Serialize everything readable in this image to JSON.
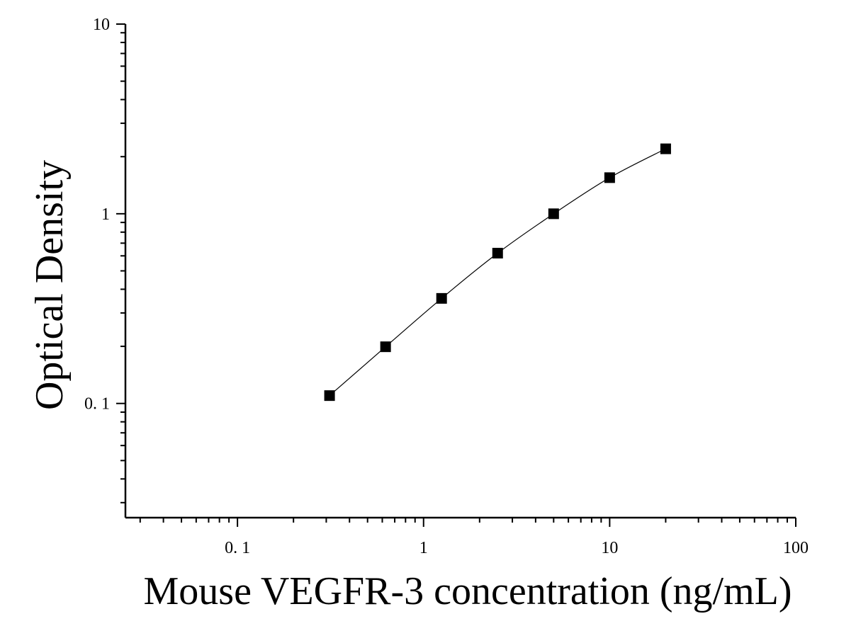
{
  "chart_data": {
    "type": "scatter",
    "title": "",
    "xlabel": "Mouse VEGFR-3 concentration (ng/mL)",
    "ylabel": "Optical Density",
    "xscale": "log",
    "yscale": "log",
    "xlim": [
      0.025,
      100
    ],
    "ylim": [
      0.025,
      10
    ],
    "x_ticks": [
      {
        "value": 0.1,
        "label": "0. 1"
      },
      {
        "value": 1,
        "label": "1"
      },
      {
        "value": 10,
        "label": "10"
      },
      {
        "value": 100,
        "label": "100"
      }
    ],
    "y_ticks": [
      {
        "value": 0.1,
        "label": "0. 1"
      },
      {
        "value": 1,
        "label": "1"
      },
      {
        "value": 10,
        "label": "10"
      }
    ],
    "grid": false,
    "legend": false,
    "marker": "square",
    "fit_curve": true,
    "series": [
      {
        "x": [
          0.3125,
          0.625,
          1.25,
          2.5,
          5,
          10,
          20
        ],
        "y": [
          0.11,
          0.199,
          0.358,
          0.62,
          1.0,
          1.55,
          2.2
        ]
      }
    ],
    "colors": {
      "marker": "#000000",
      "line": "#000000",
      "axis": "#000000"
    }
  }
}
